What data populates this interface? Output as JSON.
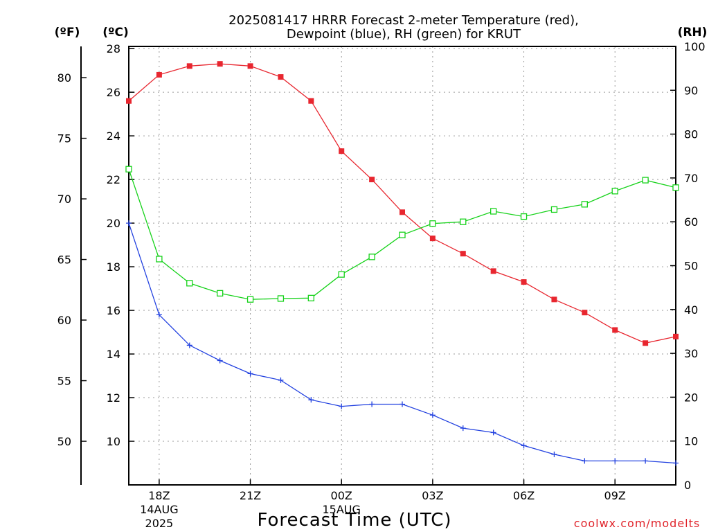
{
  "chart_data": {
    "type": "line",
    "title_line1": "2025081417 HRRR Forecast 2-meter Temperature (red),",
    "title_line2": "Dewpoint (blue), RH (green) for KRUT",
    "xlabel": "Forecast Time (UTC)",
    "credit": "coolwx.com/modelts",
    "unit_f": "(ºF)",
    "unit_c": "(ºC)",
    "unit_rh": "(RH)",
    "x": [
      "17Z",
      "18Z",
      "19Z",
      "20Z",
      "21Z",
      "22Z",
      "23Z",
      "00Z",
      "01Z",
      "02Z",
      "03Z",
      "04Z",
      "05Z",
      "06Z",
      "07Z",
      "08Z",
      "09Z",
      "10Z",
      "11Z"
    ],
    "x_tick_labels": [
      {
        "hour": "18Z",
        "date": "14AUG",
        "year": "2025"
      },
      {
        "hour": "21Z",
        "date": "",
        "year": ""
      },
      {
        "hour": "00Z",
        "date": "15AUG",
        "year": ""
      },
      {
        "hour": "03Z",
        "date": "",
        "year": ""
      },
      {
        "hour": "06Z",
        "date": "",
        "year": ""
      },
      {
        "hour": "09Z",
        "date": "",
        "year": ""
      }
    ],
    "x_tick_index": [
      1,
      4,
      7,
      10,
      13,
      16
    ],
    "celsius_ticks": [
      "10",
      "12",
      "14",
      "16",
      "18",
      "20",
      "22",
      "24",
      "26",
      "28"
    ],
    "fahrenheit_ticks": [
      "50",
      "55",
      "60",
      "65",
      "70",
      "75",
      "80"
    ],
    "rh_ticks": [
      "0",
      "10",
      "20",
      "30",
      "40",
      "50",
      "60",
      "70",
      "80",
      "90",
      "100"
    ],
    "ylim_celsius": [
      8.0,
      28.1
    ],
    "ylim_rh": [
      0,
      100
    ],
    "grid": true,
    "series": [
      {
        "name": "Temperature",
        "color": "#e8262f",
        "marker": "filled-square",
        "axis": "celsius",
        "values": [
          25.6,
          26.8,
          27.2,
          27.3,
          27.2,
          26.7,
          25.6,
          23.3,
          22.0,
          20.5,
          19.3,
          18.6,
          17.8,
          17.3,
          16.5,
          15.9,
          15.1,
          14.5,
          14.8
        ]
      },
      {
        "name": "Dewpoint",
        "color": "#2342e0",
        "marker": "plus",
        "axis": "celsius",
        "values": [
          20.0,
          15.8,
          14.4,
          13.7,
          13.1,
          12.8,
          11.9,
          11.6,
          11.7,
          11.7,
          11.2,
          10.6,
          10.4,
          9.8,
          9.4,
          9.1,
          9.1,
          9.1,
          9.0
        ]
      },
      {
        "name": "RH",
        "color": "#16d21a",
        "marker": "open-square",
        "axis": "rh",
        "values": [
          72,
          51.5,
          46,
          43.7,
          42.3,
          42.5,
          42.6,
          48,
          52,
          57,
          59.6,
          60,
          62.4,
          61.2,
          62.8,
          64,
          67,
          69.5,
          67.8
        ]
      }
    ]
  }
}
